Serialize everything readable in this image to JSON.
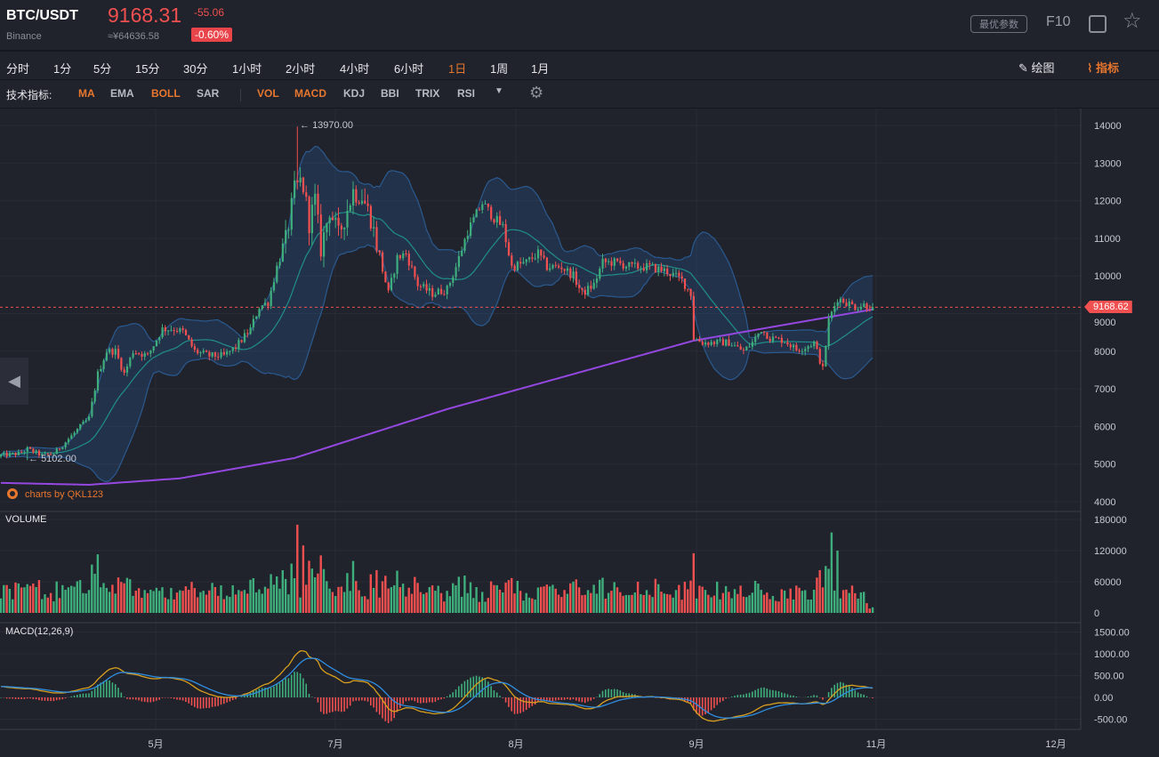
{
  "header": {
    "symbol": "BTC/USDT",
    "exchange": "Binance",
    "price": "9168.31",
    "cny": "≈¥64636.58",
    "change": "-55.06",
    "change_pct": "-0.60%",
    "param_btn": "最优参数",
    "f10": "F10"
  },
  "tabs": [
    "分时",
    "1分",
    "5分",
    "15分",
    "30分",
    "1小时",
    "2小时",
    "4小时",
    "6小时",
    "1日",
    "1周",
    "1月"
  ],
  "active_tab": "1日",
  "tools": {
    "draw": "绘图",
    "indicator": "指标"
  },
  "indicators": {
    "label": "技术指标:",
    "main": [
      "MA",
      "EMA",
      "BOLL",
      "SAR"
    ],
    "sub": [
      "VOL",
      "MACD",
      "KDJ",
      "BBI",
      "TRIX",
      "RSI"
    ],
    "active": [
      "MA",
      "BOLL",
      "VOL",
      "MACD"
    ]
  },
  "colors": {
    "up": "#3fae7d",
    "down": "#f0504f",
    "ma": "#9448e0",
    "boll_mid": "#1f8f8a",
    "boll_band": "#2a5a8f",
    "dif": "#d9a01f",
    "dea": "#2f8ee0",
    "accent": "#e8772e"
  },
  "chart_data": {
    "type": "candlestick",
    "symbol": "BTC/USDT",
    "interval": "1日",
    "close_keypoints": [
      [
        0,
        5230
      ],
      [
        6,
        5280
      ],
      [
        9,
        5400
      ],
      [
        14,
        5230
      ],
      [
        18,
        5280
      ],
      [
        21,
        5510
      ],
      [
        24,
        5750
      ],
      [
        27,
        5990
      ],
      [
        30,
        6220
      ],
      [
        33,
        7400
      ],
      [
        36,
        8000
      ],
      [
        39,
        8000
      ],
      [
        42,
        7400
      ],
      [
        45,
        8000
      ],
      [
        50,
        7880
      ],
      [
        55,
        8590
      ],
      [
        59,
        8590
      ],
      [
        62,
        8520
      ],
      [
        66,
        8000
      ],
      [
        71,
        7880
      ],
      [
        76,
        7880
      ],
      [
        80,
        8110
      ],
      [
        85,
        8590
      ],
      [
        88,
        9180
      ],
      [
        91,
        9300
      ],
      [
        94,
        10240
      ],
      [
        97,
        10950
      ],
      [
        100,
        12250
      ],
      [
        102,
        12490
      ],
      [
        103,
        12370
      ],
      [
        105,
        11420
      ],
      [
        107,
        12010
      ],
      [
        109,
        10710
      ],
      [
        112,
        11780
      ],
      [
        115,
        11070
      ],
      [
        120,
        12250
      ],
      [
        123,
        12130
      ],
      [
        126,
        11540
      ],
      [
        129,
        10480
      ],
      [
        132,
        9530
      ],
      [
        135,
        10480
      ],
      [
        138,
        10600
      ],
      [
        142,
        9770
      ],
      [
        147,
        9530
      ],
      [
        152,
        9650
      ],
      [
        155,
        10240
      ],
      [
        159,
        11190
      ],
      [
        164,
        11940
      ],
      [
        168,
        11540
      ],
      [
        171,
        11300
      ],
      [
        174,
        10240
      ],
      [
        179,
        10360
      ],
      [
        183,
        10600
      ],
      [
        186,
        10240
      ],
      [
        191,
        10240
      ],
      [
        195,
        10000
      ],
      [
        198,
        9530
      ],
      [
        202,
        9770
      ],
      [
        205,
        10360
      ],
      [
        209,
        10360
      ],
      [
        215,
        10240
      ],
      [
        221,
        10240
      ],
      [
        227,
        10120
      ],
      [
        232,
        9890
      ],
      [
        235,
        9530
      ],
      [
        236,
        8350
      ],
      [
        239,
        8230
      ],
      [
        244,
        8230
      ],
      [
        248,
        8230
      ],
      [
        253,
        8000
      ],
      [
        256,
        8230
      ],
      [
        259,
        8590
      ],
      [
        262,
        8350
      ],
      [
        267,
        8280
      ],
      [
        271,
        8040
      ],
      [
        274,
        8110
      ],
      [
        277,
        8230
      ],
      [
        280,
        7520
      ],
      [
        282,
        8820
      ],
      [
        285,
        9410
      ],
      [
        288,
        9300
      ],
      [
        291,
        9180
      ],
      [
        294,
        9230
      ],
      [
        297,
        9150
      ]
    ],
    "ma_keypoints": [
      [
        0,
        4500
      ],
      [
        30,
        4450
      ],
      [
        61,
        4620
      ],
      [
        100,
        5160
      ],
      [
        152,
        6460
      ],
      [
        236,
        8280
      ],
      [
        297,
        9110
      ]
    ],
    "volume_spikes": [
      [
        101,
        170000
      ],
      [
        103,
        130000
      ],
      [
        99,
        95000
      ],
      [
        120,
        100000
      ],
      [
        236,
        115000
      ],
      [
        283,
        155000
      ],
      [
        285,
        120000
      ],
      [
        282,
        85000
      ]
    ],
    "annotations": {
      "high": "13970.00",
      "low": "5102.00",
      "last": "9168.62"
    },
    "price_axis": [
      "14000",
      "13000",
      "12000",
      "11000",
      "10000",
      "9000",
      "8000",
      "7000",
      "6000",
      "5000",
      "4000"
    ],
    "volume_axis": [
      "180000",
      "120000",
      "60000",
      "0"
    ],
    "macd_axis": [
      "1500.00",
      "1000.00",
      "500.00",
      "0.00",
      "-500.00"
    ],
    "x_ticks": [
      "5月",
      "7月",
      "8月",
      "9月",
      "11月",
      "12月"
    ],
    "panels": {
      "volume": "VOLUME",
      "macd": "MACD(12,26,9)"
    },
    "watermark": "charts by QKL123"
  }
}
